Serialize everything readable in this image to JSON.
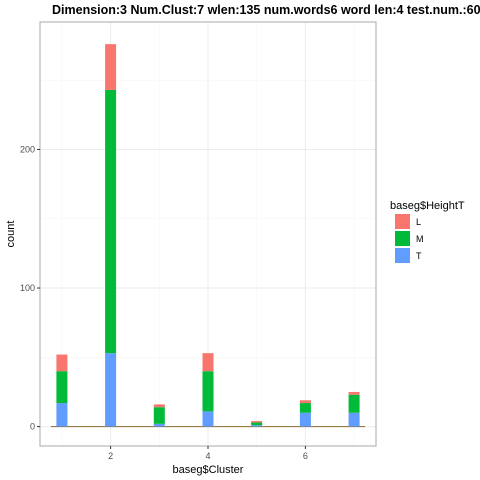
{
  "chart_data": {
    "type": "bar",
    "stacked": true,
    "title": "Dimension:3  Num.Clust:7  wlen:135  num.words6  word len:4  test.num.:60",
    "xlabel": "baseg$Cluster",
    "ylabel": "count",
    "x_categories": [
      1,
      2,
      3,
      4,
      5,
      6,
      7
    ],
    "x_ticks": [
      2,
      4,
      6
    ],
    "y_ticks": [
      0,
      100,
      200
    ],
    "xlim": [
      0.55,
      7.45
    ],
    "ylim": [
      -14,
      292
    ],
    "grid": true,
    "legend": {
      "title": "baseg$HeightT",
      "position": "right",
      "entries": [
        {
          "label": "L",
          "color": "#F8766D"
        },
        {
          "label": "M",
          "color": "#00BA38"
        },
        {
          "label": "T",
          "color": "#619CFF"
        }
      ]
    },
    "series": [
      {
        "name": "T",
        "color": "#619CFF",
        "values": [
          17,
          53,
          2,
          11,
          1,
          10,
          10
        ]
      },
      {
        "name": "M",
        "color": "#00BA38",
        "values": [
          23,
          190,
          12,
          29,
          2,
          7,
          13
        ]
      },
      {
        "name": "L",
        "color": "#F8766D",
        "values": [
          12,
          33,
          2,
          13,
          1,
          2,
          2
        ]
      }
    ],
    "colors": {
      "panel_border": "#a8a8a8",
      "grid_major": "#ebebeb",
      "grid_minor": "#f5f5f5",
      "baseline": "#8a6b2e"
    }
  }
}
